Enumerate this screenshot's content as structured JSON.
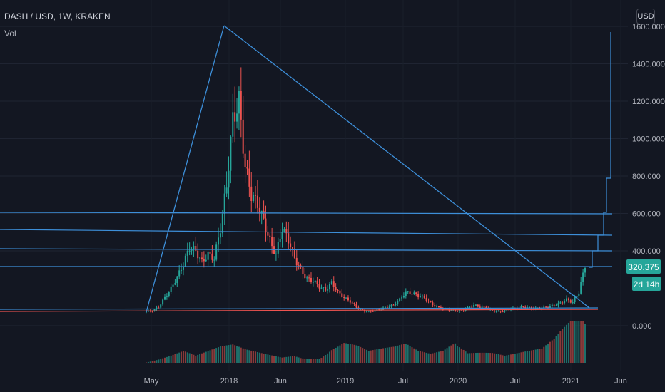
{
  "header": {
    "symbol": "DASH / USD, 1W, KRAKEN",
    "indicator": "Vol",
    "currency_button": "USD"
  },
  "badges": {
    "price": "320.375",
    "countdown": "2d 14h"
  },
  "colors": {
    "background": "#131722",
    "up": "#26a69a",
    "down": "#ef5350",
    "drawing": "#2962ff",
    "trendline": "#3d8fd9"
  },
  "chart_data": {
    "type": "candlestick",
    "x_labels": [
      "May",
      "2018",
      "Jun",
      "2019",
      "Jul",
      "2020",
      "Jul",
      "2021",
      "Jun"
    ],
    "y_ticks": [
      "0.000",
      "400.000",
      "600.000",
      "800.000",
      "1000.000",
      "1200.000",
      "1400.000",
      "1600.000"
    ],
    "ylim": [
      -60,
      1640
    ],
    "close_path": [
      [
        0,
        75
      ],
      [
        3,
        80
      ],
      [
        6,
        100
      ],
      [
        9,
        150
      ],
      [
        12,
        200
      ],
      [
        15,
        260
      ],
      [
        18,
        330
      ],
      [
        21,
        420
      ],
      [
        24,
        400
      ],
      [
        27,
        340
      ],
      [
        30,
        380
      ],
      [
        33,
        360
      ],
      [
        36,
        520
      ],
      [
        39,
        750
      ],
      [
        42,
        1100
      ],
      [
        45,
        1200
      ],
      [
        48,
        850
      ],
      [
        51,
        700
      ],
      [
        54,
        650
      ],
      [
        57,
        560
      ],
      [
        60,
        450
      ],
      [
        63,
        380
      ],
      [
        66,
        520
      ],
      [
        69,
        460
      ],
      [
        72,
        360
      ],
      [
        75,
        300
      ],
      [
        78,
        250
      ],
      [
        81,
        240
      ],
      [
        84,
        210
      ],
      [
        87,
        190
      ],
      [
        90,
        230
      ],
      [
        93,
        180
      ],
      [
        96,
        150
      ],
      [
        99,
        130
      ],
      [
        102,
        100
      ],
      [
        105,
        80
      ],
      [
        108,
        75
      ],
      [
        111,
        80
      ],
      [
        114,
        90
      ],
      [
        117,
        100
      ],
      [
        120,
        110
      ],
      [
        123,
        140
      ],
      [
        126,
        180
      ],
      [
        129,
        175
      ],
      [
        132,
        160
      ],
      [
        135,
        150
      ],
      [
        138,
        120
      ],
      [
        141,
        100
      ],
      [
        144,
        90
      ],
      [
        147,
        85
      ],
      [
        150,
        80
      ],
      [
        153,
        78
      ],
      [
        156,
        95
      ],
      [
        159,
        110
      ],
      [
        162,
        100
      ],
      [
        165,
        95
      ],
      [
        168,
        80
      ],
      [
        171,
        75
      ],
      [
        174,
        80
      ],
      [
        177,
        90
      ],
      [
        180,
        95
      ],
      [
        183,
        100
      ],
      [
        186,
        95
      ],
      [
        189,
        90
      ],
      [
        192,
        95
      ],
      [
        195,
        100
      ],
      [
        198,
        110
      ],
      [
        201,
        120
      ],
      [
        204,
        140
      ],
      [
        207,
        125
      ],
      [
        210,
        180
      ],
      [
        213,
        320
      ]
    ],
    "volume_path": [
      [
        0,
        5
      ],
      [
        6,
        15
      ],
      [
        12,
        25
      ],
      [
        18,
        35
      ],
      [
        24,
        20
      ],
      [
        30,
        30
      ],
      [
        36,
        40
      ],
      [
        42,
        45
      ],
      [
        48,
        35
      ],
      [
        54,
        30
      ],
      [
        60,
        25
      ],
      [
        66,
        20
      ],
      [
        72,
        30
      ],
      [
        78,
        20
      ],
      [
        84,
        15
      ],
      [
        90,
        40
      ],
      [
        96,
        55
      ],
      [
        102,
        45
      ],
      [
        108,
        30
      ],
      [
        114,
        35
      ],
      [
        120,
        40
      ],
      [
        126,
        50
      ],
      [
        132,
        35
      ],
      [
        138,
        30
      ],
      [
        144,
        45
      ],
      [
        150,
        90
      ],
      [
        156,
        40
      ],
      [
        162,
        35
      ],
      [
        168,
        30
      ],
      [
        174,
        20
      ],
      [
        180,
        25
      ],
      [
        186,
        30
      ],
      [
        192,
        35
      ],
      [
        198,
        60
      ],
      [
        204,
        100
      ],
      [
        210,
        140
      ],
      [
        213,
        120
      ]
    ]
  }
}
